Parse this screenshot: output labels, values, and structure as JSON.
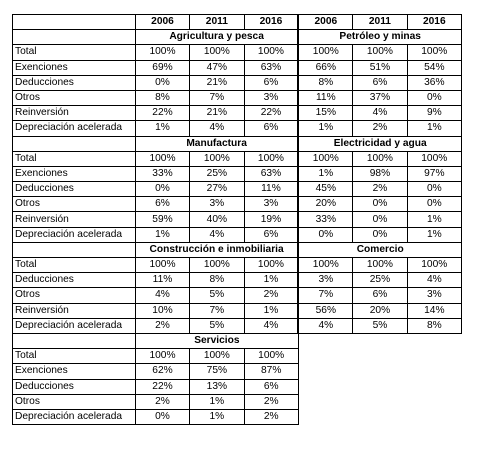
{
  "years": [
    "2006",
    "2011",
    "2016",
    "2006",
    "2011",
    "2016"
  ],
  "blocks": [
    {
      "left": "Agricultura y pesca",
      "right": "Petróleo y minas",
      "rows": [
        {
          "label": "Total",
          "v": [
            "100%",
            "100%",
            "100%",
            "100%",
            "100%",
            "100%"
          ]
        },
        {
          "label": "Exenciones",
          "v": [
            "69%",
            "47%",
            "63%",
            "66%",
            "51%",
            "54%"
          ]
        },
        {
          "label": "Deducciones",
          "v": [
            "0%",
            "21%",
            "6%",
            "8%",
            "6%",
            "36%"
          ]
        },
        {
          "label": "Otros",
          "v": [
            "8%",
            "7%",
            "3%",
            "11%",
            "37%",
            "0%"
          ]
        },
        {
          "label": "Reinversión",
          "v": [
            "22%",
            "21%",
            "22%",
            "15%",
            "4%",
            "9%"
          ]
        },
        {
          "label": "Depreciación acelerada",
          "v": [
            "1%",
            "4%",
            "6%",
            "1%",
            "2%",
            "1%"
          ]
        }
      ]
    },
    {
      "left": "Manufactura",
      "right": "Electricidad y agua",
      "rows": [
        {
          "label": "Total",
          "v": [
            "100%",
            "100%",
            "100%",
            "100%",
            "100%",
            "100%"
          ]
        },
        {
          "label": "Exenciones",
          "v": [
            "33%",
            "25%",
            "63%",
            "1%",
            "98%",
            "97%"
          ]
        },
        {
          "label": "Deducciones",
          "v": [
            "0%",
            "27%",
            "11%",
            "45%",
            "2%",
            "0%"
          ]
        },
        {
          "label": "Otros",
          "v": [
            "6%",
            "3%",
            "3%",
            "20%",
            "0%",
            "0%"
          ]
        },
        {
          "label": "Reinversión",
          "v": [
            "59%",
            "40%",
            "19%",
            "33%",
            "0%",
            "1%"
          ]
        },
        {
          "label": "Depreciación acelerada",
          "v": [
            "1%",
            "4%",
            "6%",
            "0%",
            "0%",
            "1%"
          ]
        }
      ]
    },
    {
      "left": "Construcción e inmobiliaria",
      "right": "Comercio",
      "rows": [
        {
          "label": "Total",
          "v": [
            "100%",
            "100%",
            "100%",
            "100%",
            "100%",
            "100%"
          ]
        },
        {
          "label": "Deducciones",
          "v": [
            "11%",
            "8%",
            "1%",
            "3%",
            "25%",
            "4%"
          ]
        },
        {
          "label": "Otros",
          "v": [
            "4%",
            "5%",
            "2%",
            "7%",
            "6%",
            "3%"
          ]
        },
        {
          "label": "Reinversión",
          "v": [
            "10%",
            "7%",
            "1%",
            "56%",
            "20%",
            "14%"
          ]
        },
        {
          "label": "Depreciación acelerada",
          "v": [
            "2%",
            "5%",
            "4%",
            "4%",
            "5%",
            "8%"
          ]
        }
      ]
    },
    {
      "left": "Servicios",
      "right": "",
      "rows": [
        {
          "label": "Total",
          "v": [
            "100%",
            "100%",
            "100%"
          ]
        },
        {
          "label": "Exenciones",
          "v": [
            "62%",
            "75%",
            "87%"
          ]
        },
        {
          "label": "Deducciones",
          "v": [
            "22%",
            "13%",
            "6%"
          ]
        },
        {
          "label": "Otros",
          "v": [
            "2%",
            "1%",
            "2%"
          ]
        },
        {
          "label": "Depreciación acelerada",
          "v": [
            "0%",
            "1%",
            "2%"
          ]
        }
      ]
    }
  ]
}
